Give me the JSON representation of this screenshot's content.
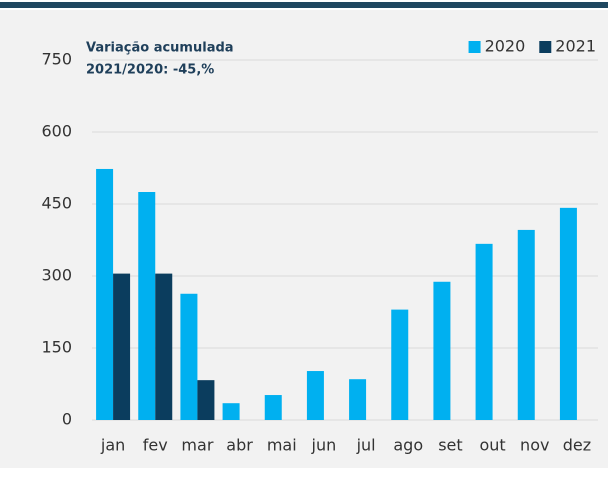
{
  "chart_data": {
    "type": "bar",
    "annotation": [
      "Variação acumulada",
      "2021/2020:  -45,%"
    ],
    "categories": [
      "jan",
      "fev",
      "mar",
      "abr",
      "mai",
      "jun",
      "jul",
      "ago",
      "set",
      "out",
      "nov",
      "dez"
    ],
    "series": [
      {
        "name": "2020",
        "color": "#00b0f0",
        "values": [
          523,
          475,
          263,
          35,
          52,
          102,
          85,
          230,
          288,
          367,
          396,
          442
        ]
      },
      {
        "name": "2021",
        "color": "#0b3d5e",
        "values": [
          305,
          305,
          83,
          null,
          null,
          null,
          null,
          null,
          null,
          null,
          null,
          null
        ]
      }
    ],
    "ylim": [
      0,
      750
    ],
    "yticks": [
      0,
      150,
      300,
      450,
      600,
      750
    ],
    "grid": true,
    "legend": "top-right"
  }
}
